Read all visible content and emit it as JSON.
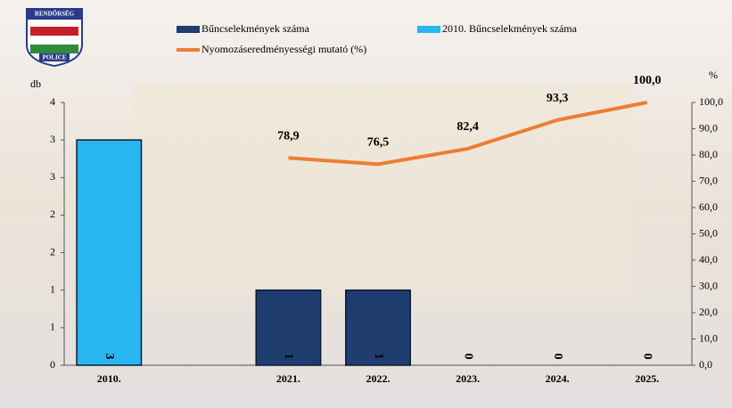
{
  "logo": {
    "top": "RENDŐRSÉG",
    "bottom": "POLICE"
  },
  "chart_data": {
    "type": "bar-line",
    "y_label": "db",
    "y2_label": "%",
    "categories": [
      "2010.",
      null,
      "2021.",
      "2022.",
      "2023.",
      "2024.",
      "2025."
    ],
    "series": [
      {
        "name": "Bűncselekmények száma",
        "type": "bar",
        "color": "#1f3d6e",
        "values": [
          null,
          null,
          1,
          1,
          0,
          0,
          0
        ]
      },
      {
        "name": "2010. Bűncselekmények száma",
        "type": "bar",
        "color": "#29b6f0",
        "values": [
          3,
          null,
          null,
          null,
          null,
          null,
          null
        ]
      },
      {
        "name": "Nyomozáseredményességi mutató (%)",
        "type": "line",
        "axis": "y2",
        "color": "#ed7d31",
        "values": [
          null,
          null,
          78.9,
          76.5,
          82.4,
          93.3,
          100.0
        ],
        "value_labels": [
          null,
          null,
          "78,9",
          "76,5",
          "82,4",
          "93,3",
          "100,0"
        ]
      }
    ],
    "ylim": [
      0,
      3.5
    ],
    "yticks": [
      0,
      {
        "value": 0.5,
        "label": "1"
      },
      1,
      {
        "value": 1.5,
        "label": "2"
      },
      2,
      {
        "value": 2.5,
        "label": "3"
      },
      3,
      {
        "value": 3.5,
        "label": "4"
      }
    ],
    "y2lim": [
      0,
      100
    ],
    "y2ticks": [
      {
        "value": 0,
        "label": "0,0"
      },
      {
        "value": 10,
        "label": "10,0"
      },
      {
        "value": 20,
        "label": "20,0"
      },
      {
        "value": 30,
        "label": "30,0"
      },
      {
        "value": 40,
        "label": "40,0"
      },
      {
        "value": 50,
        "label": "50,0"
      },
      {
        "value": 60,
        "label": "60,0"
      },
      {
        "value": 70,
        "label": "70,0"
      },
      {
        "value": 80,
        "label": "80,0"
      },
      {
        "value": 90,
        "label": "90,0"
      },
      {
        "value": 100,
        "label": "100,0"
      }
    ]
  }
}
